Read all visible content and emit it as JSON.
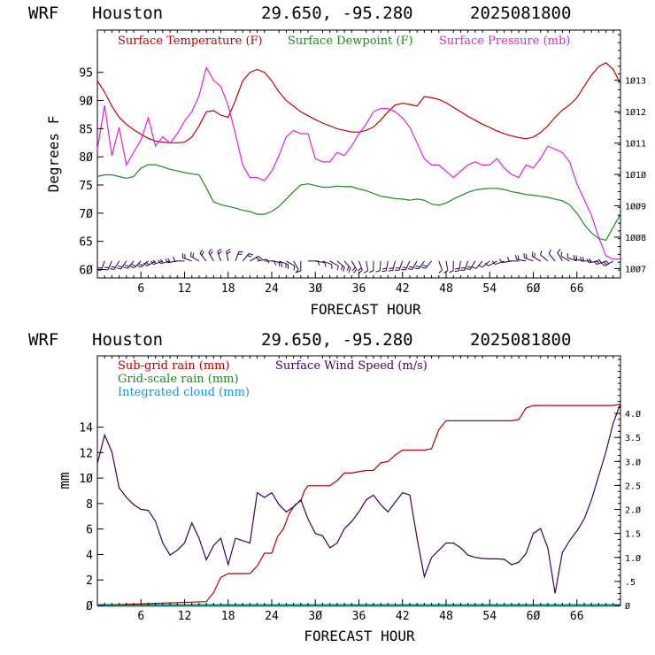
{
  "colors": {
    "temperature": "#c00000",
    "dewpoint": "#1a8a1a",
    "pressure": "#e020e0",
    "subgrid_rain": "#b00000",
    "gridscale_rain": "#1a8a1a",
    "integrated_cloud": "#1f8fd6",
    "wind_speed": "#3a0058",
    "wind_barb": "#2a0040"
  },
  "chart_data": [
    {
      "type": "line",
      "header": {
        "model": "WRF",
        "location": "Houston",
        "coords": "29.650, -95.280",
        "run": "2025081800"
      },
      "xlabel": "FORECAST HOUR",
      "ylabel": "Degrees F",
      "xlim": [
        0,
        72
      ],
      "ylim": [
        58.5,
        102.5
      ],
      "xticks": [
        6,
        12,
        18,
        24,
        30,
        36,
        42,
        48,
        54,
        60,
        66
      ],
      "xtick_labels": [
        "6",
        "12",
        "18",
        "24",
        "3Ø",
        "36",
        "42",
        "48",
        "54",
        "6Ø",
        "66"
      ],
      "yticks": [
        60,
        65,
        70,
        75,
        80,
        85,
        90,
        95
      ],
      "ytick_labels": [
        "6Ø",
        "65",
        "7Ø",
        "75",
        "8Ø",
        "85",
        "9Ø",
        "95"
      ],
      "y2lim": [
        1006.7,
        1014.6
      ],
      "y2ticks": [
        1007,
        1008,
        1009,
        1010,
        1011,
        1012,
        1013
      ],
      "y2tick_labels": [
        "1ØØ7",
        "1ØØ8",
        "1ØØ9",
        "1Ø1Ø",
        "1Ø11",
        "1Ø12",
        "1Ø13"
      ],
      "series": [
        {
          "name": "Surface Temperature (F)",
          "axis": "left",
          "x": [
            0,
            1,
            2,
            3,
            4,
            5,
            6,
            7,
            8,
            9,
            10,
            11,
            12,
            13,
            14,
            15,
            16,
            17,
            18,
            19,
            20,
            21,
            22,
            23,
            24,
            25,
            26,
            27,
            28,
            29,
            30,
            31,
            32,
            33,
            34,
            35,
            36,
            37,
            38,
            39,
            40,
            41,
            42,
            43,
            44,
            45,
            46,
            47,
            48,
            49,
            50,
            51,
            52,
            53,
            54,
            55,
            56,
            57,
            58,
            59,
            60,
            61,
            62,
            63,
            64,
            65,
            66,
            67,
            68,
            69,
            70,
            71,
            72
          ],
          "y": [
            93.5,
            91.5,
            89,
            87,
            85.8,
            84.8,
            84,
            83.3,
            82.8,
            82.6,
            82.5,
            82.5,
            82.6,
            83.5,
            85.5,
            88,
            88.2,
            87.4,
            87,
            90,
            93.5,
            95,
            95.5,
            95,
            93.5,
            91.5,
            90,
            89,
            88,
            87.3,
            86.6,
            86,
            85.5,
            85,
            84.7,
            84.4,
            84.4,
            84.7,
            85.3,
            86.5,
            88,
            89.2,
            89.5,
            89.3,
            89,
            90.7,
            90.5,
            90.2,
            89.6,
            88.8,
            88,
            87.2,
            86.5,
            85.8,
            85.2,
            84.6,
            84.1,
            83.7,
            83.4,
            83.2,
            83.5,
            84.3,
            85.5,
            87,
            88.3,
            89.2,
            90.5,
            92.5,
            94.5,
            96,
            96.7,
            95.5,
            93
          ]
        },
        {
          "name": "Surface Dewpoint (F)",
          "axis": "left",
          "x": [
            0,
            1,
            2,
            3,
            4,
            5,
            6,
            7,
            8,
            9,
            10,
            11,
            12,
            13,
            14,
            15,
            16,
            17,
            18,
            19,
            20,
            21,
            22,
            23,
            24,
            25,
            26,
            27,
            28,
            29,
            30,
            31,
            32,
            33,
            34,
            35,
            36,
            37,
            38,
            39,
            40,
            41,
            42,
            43,
            44,
            45,
            46,
            47,
            48,
            49,
            50,
            51,
            52,
            53,
            54,
            55,
            56,
            57,
            58,
            59,
            60,
            61,
            62,
            63,
            64,
            65,
            66,
            67,
            68,
            69,
            70,
            71,
            72
          ],
          "y": [
            76.5,
            76.8,
            76.8,
            76.5,
            76.2,
            76.5,
            78,
            78.6,
            78.6,
            78.2,
            77.8,
            77.5,
            77.2,
            77,
            76.8,
            74.5,
            72,
            71.5,
            71.2,
            70.9,
            70.5,
            70.3,
            69.8,
            69.8,
            70.3,
            71.2,
            72.5,
            73.8,
            75,
            75.2,
            74.9,
            74.6,
            74.6,
            74.8,
            74.7,
            74.7,
            74.3,
            74,
            73.5,
            73,
            72.8,
            72.6,
            72.5,
            72.3,
            72.5,
            72.3,
            71.6,
            71.4,
            71.8,
            72.5,
            73.1,
            73.7,
            74.1,
            74.3,
            74.4,
            74.4,
            74.2,
            73.8,
            73.6,
            73.3,
            73.2,
            73,
            72.8,
            72.5,
            72.2,
            71.5,
            70,
            68,
            66.5,
            65.5,
            65.2,
            67.5,
            69.8
          ]
        },
        {
          "name": "Surface Pressure (mb)",
          "axis": "right",
          "x": [
            0,
            1,
            2,
            3,
            4,
            5,
            6,
            7,
            8,
            9,
            10,
            11,
            12,
            13,
            14,
            15,
            16,
            17,
            18,
            19,
            20,
            21,
            22,
            23,
            24,
            25,
            26,
            27,
            28,
            29,
            30,
            31,
            32,
            33,
            34,
            35,
            36,
            37,
            38,
            39,
            40,
            41,
            42,
            43,
            44,
            45,
            46,
            47,
            48,
            49,
            50,
            51,
            52,
            53,
            54,
            55,
            56,
            57,
            58,
            59,
            60,
            61,
            62,
            63,
            64,
            65,
            66,
            67,
            68,
            69,
            70,
            71,
            72
          ],
          "y": [
            1010.8,
            1012.2,
            1010.6,
            1011.5,
            1010.3,
            1010.7,
            1011.1,
            1011.8,
            1010.9,
            1011.2,
            1011.0,
            1011.3,
            1011.7,
            1012.0,
            1012.5,
            1013.4,
            1013.0,
            1012.8,
            1012.2,
            1011.3,
            1010.3,
            1009.9,
            1009.9,
            1009.8,
            1010.1,
            1010.6,
            1011.2,
            1011.4,
            1011.3,
            1011.3,
            1010.5,
            1010.4,
            1010.4,
            1010.7,
            1010.6,
            1010.9,
            1011.3,
            1011.6,
            1012.0,
            1012.1,
            1012.1,
            1012.0,
            1011.8,
            1011.5,
            1011.0,
            1010.5,
            1010.3,
            1010.3,
            1010.1,
            1009.9,
            1010.1,
            1010.3,
            1010.4,
            1010.3,
            1010.3,
            1010.5,
            1010.2,
            1010.0,
            1009.9,
            1010.3,
            1010.2,
            1010.5,
            1010.9,
            1010.8,
            1010.7,
            1010.4,
            1009.7,
            1009.2,
            1008.7,
            1008.0,
            1007.4,
            1007.3,
            1007.3
          ]
        }
      ],
      "wind_barbs": {
        "y": 61.5,
        "x": [
          1,
          2,
          3,
          4,
          5,
          6,
          7,
          8,
          9,
          10,
          11,
          12,
          13,
          14,
          15,
          16,
          17,
          18,
          19,
          20,
          21,
          22,
          23,
          24,
          25,
          26,
          27,
          28,
          29,
          30,
          31,
          32,
          33,
          34,
          35,
          36,
          37,
          38,
          39,
          40,
          41,
          42,
          43,
          44,
          45,
          46,
          47,
          48,
          49,
          50,
          51,
          52,
          53,
          54,
          55,
          56,
          57,
          58,
          59,
          60,
          61,
          62,
          63,
          64,
          65,
          66,
          67,
          68,
          69,
          70,
          71
        ],
        "direction_deg": [
          200,
          205,
          210,
          215,
          220,
          225,
          230,
          240,
          250,
          255,
          260,
          270,
          290,
          300,
          320,
          330,
          340,
          350,
          20,
          40,
          60,
          80,
          90,
          100,
          110,
          120,
          150,
          180,
          90,
          100,
          110,
          120,
          130,
          140,
          150,
          160,
          170,
          180,
          185,
          190,
          195,
          200,
          205,
          210,
          215,
          220,
          160,
          170,
          180,
          190,
          200,
          210,
          220,
          230,
          240,
          250,
          260,
          270,
          280,
          290,
          300,
          310,
          320,
          330,
          300,
          290,
          280,
          270,
          260,
          250,
          240
        ],
        "speed": [
          6,
          7,
          8,
          8,
          7,
          6,
          6,
          7,
          7,
          6,
          6,
          5,
          6,
          8,
          9,
          9,
          8,
          8,
          7,
          6,
          6,
          5,
          5,
          6,
          6,
          5,
          4,
          4,
          4,
          4,
          5,
          5,
          6,
          6,
          6,
          6,
          5,
          5,
          5,
          6,
          7,
          7,
          7,
          7,
          7,
          6,
          4,
          4,
          5,
          6,
          6,
          6,
          5,
          5,
          5,
          5,
          5,
          5,
          6,
          6,
          6,
          5,
          4,
          3,
          4,
          5,
          6,
          8,
          9,
          10,
          12
        ]
      }
    },
    {
      "type": "line",
      "header": {
        "model": "WRF",
        "location": "Houston",
        "coords": "29.650, -95.280",
        "run": "2025081800"
      },
      "xlabel": "FORECAST HOUR",
      "ylabel": "mm",
      "xlim": [
        0,
        72
      ],
      "ylim": [
        0,
        19.6
      ],
      "xticks": [
        6,
        12,
        18,
        24,
        30,
        36,
        42,
        48,
        54,
        60,
        66
      ],
      "xtick_labels": [
        "6",
        "12",
        "18",
        "24",
        "3Ø",
        "36",
        "42",
        "48",
        "54",
        "6Ø",
        "66"
      ],
      "yticks": [
        0,
        2,
        4,
        6,
        8,
        10,
        12,
        14
      ],
      "ytick_labels": [
        "Ø",
        "2",
        "4",
        "6",
        "8",
        "1Ø",
        "12",
        "14"
      ],
      "y2lim": [
        0,
        5.2
      ],
      "y2ticks": [
        0,
        0.5,
        1.0,
        1.5,
        2.0,
        2.5,
        3.0,
        3.5,
        4.0
      ],
      "y2tick_labels": [
        "Ø",
        ".5",
        "1.Ø",
        "1.5",
        "2.Ø",
        "2.5",
        "3.Ø",
        "3.5",
        "4.Ø"
      ],
      "series": [
        {
          "name": "Sub-grid rain (mm)",
          "axis": "left",
          "x": [
            0,
            15,
            16,
            17,
            18,
            19,
            20,
            21,
            22,
            23,
            24,
            24.8,
            25.6,
            26.4,
            27.2,
            28,
            28.5,
            29,
            30,
            31,
            32,
            33,
            34,
            35,
            36,
            37,
            38,
            39,
            40,
            41,
            42,
            43,
            44,
            45,
            46,
            47,
            48,
            49,
            50,
            51,
            52,
            53,
            54,
            55,
            56,
            57,
            58,
            59,
            60,
            61,
            62,
            63,
            64,
            65,
            66,
            67,
            68,
            69,
            70,
            71,
            72
          ],
          "y": [
            0,
            0.3,
            1.0,
            2.2,
            2.5,
            2.5,
            2.5,
            2.5,
            3.1,
            4.1,
            4.1,
            5.4,
            6.0,
            7.2,
            7.9,
            8.2,
            9.0,
            9.4,
            9.4,
            9.4,
            9.4,
            9.8,
            10.4,
            10.4,
            10.5,
            10.6,
            10.6,
            11.2,
            11.3,
            11.8,
            12.2,
            12.2,
            12.2,
            12.2,
            12.3,
            13.8,
            14.5,
            14.5,
            14.5,
            14.5,
            14.5,
            14.5,
            14.5,
            14.5,
            14.5,
            14.5,
            14.6,
            15.5,
            15.7,
            15.7,
            15.7,
            15.7,
            15.7,
            15.7,
            15.7,
            15.7,
            15.7,
            15.7,
            15.7,
            15.7,
            15.8
          ]
        },
        {
          "name": "Grid-scale rain (mm)",
          "axis": "left",
          "x": [
            0,
            72
          ],
          "y": [
            0,
            0
          ]
        },
        {
          "name": "Integrated cloud (mm)",
          "axis": "left",
          "x": [
            0,
            72
          ],
          "y": [
            0,
            0
          ]
        },
        {
          "name": "Surface Wind Speed (m/s)",
          "axis": "right",
          "x": [
            0,
            1,
            2,
            3,
            4,
            5,
            6,
            7,
            8,
            9,
            10,
            11,
            12,
            13,
            14,
            15,
            16,
            17,
            18,
            19,
            20,
            21,
            22,
            23,
            24,
            25,
            26,
            27,
            28,
            29,
            30,
            31,
            32,
            33,
            34,
            35,
            36,
            37,
            38,
            39,
            40,
            41,
            42,
            43,
            44,
            45,
            46,
            47,
            48,
            49,
            50,
            51,
            52,
            53,
            54,
            55,
            56,
            57,
            58,
            59,
            60,
            61,
            62,
            63,
            64,
            65,
            66,
            67,
            68,
            69,
            70,
            71,
            72
          ],
          "y": [
            2.95,
            3.55,
            3.2,
            2.45,
            2.25,
            2.1,
            2.0,
            1.98,
            1.75,
            1.3,
            1.05,
            1.15,
            1.3,
            1.72,
            1.4,
            0.95,
            1.25,
            1.4,
            0.85,
            1.4,
            1.35,
            1.3,
            2.35,
            2.25,
            2.35,
            2.1,
            1.95,
            2.05,
            2.2,
            1.8,
            1.5,
            1.45,
            1.2,
            1.3,
            1.6,
            1.75,
            1.95,
            2.2,
            2.3,
            2.1,
            1.95,
            2.15,
            2.35,
            2.3,
            1.4,
            0.6,
            1.0,
            1.15,
            1.3,
            1.3,
            1.2,
            1.05,
            1.0,
            0.98,
            0.97,
            0.97,
            0.96,
            0.85,
            0.9,
            1.08,
            1.5,
            1.6,
            1.2,
            0.25,
            1.1,
            1.35,
            1.55,
            1.8,
            2.2,
            2.7,
            3.2,
            3.8,
            4.2
          ]
        }
      ]
    }
  ]
}
